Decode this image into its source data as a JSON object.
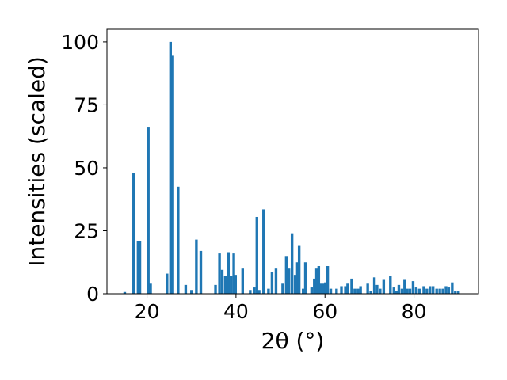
{
  "chart_data": {
    "type": "bar",
    "title": "",
    "xlabel": "2θ (°)",
    "ylabel": "Intensities (scaled)",
    "xlim": [
      11,
      94.5
    ],
    "ylim": [
      0,
      105
    ],
    "xticks": [
      20,
      40,
      60,
      80
    ],
    "yticks": [
      0,
      25,
      50,
      75,
      100
    ],
    "x_tick_labels": [
      "20",
      "40",
      "60",
      "80"
    ],
    "y_tick_labels": [
      "0",
      "25",
      "50",
      "75",
      "100"
    ],
    "grid": false,
    "legend": "none",
    "bar_color": "#1f77b4",
    "bar_width": 0.6,
    "series": [
      {
        "x": [
          15.0,
          17.0,
          18.0,
          18.4,
          20.3,
          20.8,
          24.5,
          25.3,
          25.8,
          27.0,
          28.7,
          30.0,
          31.1,
          32.1,
          35.4,
          36.3,
          36.9,
          37.6,
          38.3,
          38.9,
          39.5,
          39.9,
          41.5,
          43.2,
          44.1,
          44.7,
          45.2,
          46.2,
          47.3,
          48.1,
          49.0,
          50.5,
          51.3,
          51.9,
          52.6,
          53.3,
          53.8,
          54.2,
          55.1,
          55.6,
          57.0,
          57.6,
          58.1,
          58.6,
          59.1,
          59.6,
          60.1,
          60.6,
          61.3,
          62.6,
          63.7,
          64.6,
          65.1,
          66.0,
          66.7,
          67.4,
          68.0,
          69.6,
          70.3,
          71.1,
          71.7,
          72.4,
          73.2,
          74.7,
          75.5,
          76.1,
          76.6,
          77.3,
          77.9,
          78.5,
          79.1,
          79.8,
          80.5,
          81.2,
          82.2,
          82.9,
          83.6,
          84.3,
          85.1,
          85.8,
          86.5,
          87.2,
          87.8,
          88.6,
          89.3,
          90.0
        ],
        "values": [
          0.7,
          48,
          21,
          21,
          66,
          4,
          8,
          100,
          94.5,
          42.5,
          3.5,
          1.5,
          21.5,
          17,
          3.5,
          16,
          9.5,
          7,
          16.5,
          7,
          16,
          7.5,
          10,
          1.5,
          2.5,
          30.5,
          1.5,
          33.5,
          2,
          8.5,
          10,
          4,
          15,
          10,
          24,
          7.5,
          12.5,
          19,
          2,
          12.5,
          2.5,
          6,
          10,
          11,
          4,
          4,
          4.5,
          11,
          2,
          2,
          3,
          3,
          4,
          6,
          2,
          2,
          3,
          4,
          1,
          6.5,
          3.5,
          2,
          5.5,
          7,
          2.5,
          1,
          3.5,
          2,
          5.5,
          2,
          2,
          5,
          2.5,
          2,
          3,
          2,
          3,
          3,
          2,
          2,
          2,
          3,
          2.5,
          4.5,
          1,
          1
        ]
      }
    ]
  }
}
